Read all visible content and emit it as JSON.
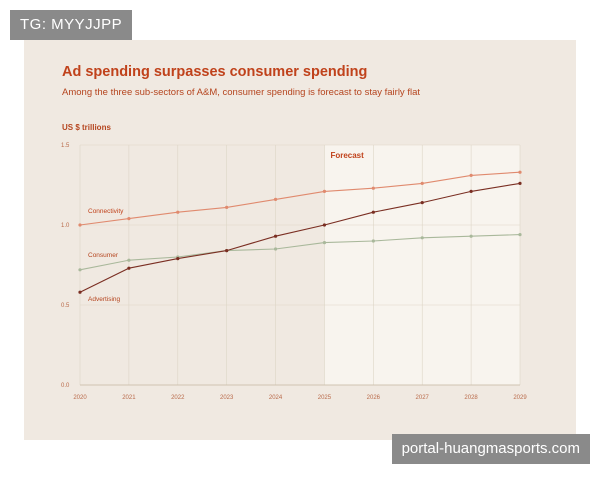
{
  "watermarks": {
    "top_left": "TG: MYYJJPP",
    "bottom_right": "portal-huangmasports.com"
  },
  "chart_data": {
    "type": "line",
    "title": "Ad spending surpasses consumer spending",
    "subtitle": "Among the three sub-sectors of A&M, consumer spending is forecast to stay fairly flat",
    "ylabel": "US $ trillions",
    "xlabel": "",
    "x": [
      2020,
      2021,
      2022,
      2023,
      2024,
      2025,
      2026,
      2027,
      2028,
      2029
    ],
    "ylim": [
      0.0,
      1.5
    ],
    "yticks": [
      "0.0",
      "0.5",
      "1.0",
      "1.5"
    ],
    "grid": true,
    "forecast": {
      "label": "Forecast",
      "start": 2025,
      "end": 2029
    },
    "series": [
      {
        "name": "Connectivity",
        "color": "#e08a6e",
        "values": [
          1.0,
          1.04,
          1.08,
          1.11,
          1.16,
          1.21,
          1.23,
          1.26,
          1.31,
          1.33
        ]
      },
      {
        "name": "Consumer",
        "color": "#a9b89b",
        "values": [
          0.72,
          0.78,
          0.8,
          0.84,
          0.85,
          0.89,
          0.9,
          0.92,
          0.93,
          0.94
        ]
      },
      {
        "name": "Advertising",
        "color": "#7a2e22",
        "values": [
          0.58,
          0.73,
          0.79,
          0.84,
          0.93,
          1.0,
          1.08,
          1.14,
          1.21,
          1.26
        ]
      }
    ]
  }
}
